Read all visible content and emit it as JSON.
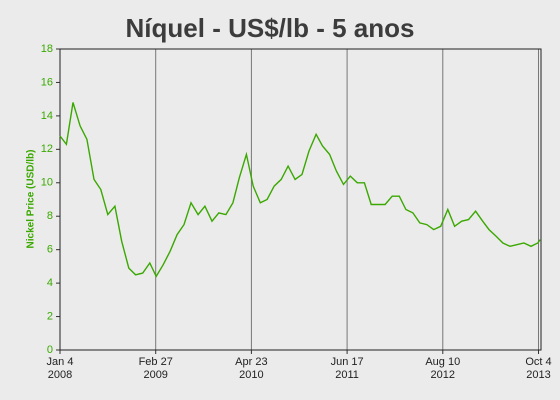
{
  "chart_data": {
    "type": "line",
    "title": "Níquel - US$/lb - 5 anos",
    "y_label": "Nickel Price (USD/lb)",
    "x": [
      "2008-01-04",
      "2008-02-01",
      "2008-03-01",
      "2008-04-01",
      "2008-05-01",
      "2008-06-01",
      "2008-07-01",
      "2008-08-01",
      "2008-09-01",
      "2008-10-01",
      "2008-11-01",
      "2008-12-01",
      "2009-01-01",
      "2009-02-01",
      "2009-03-01",
      "2009-04-01",
      "2009-05-01",
      "2009-06-01",
      "2009-07-01",
      "2009-08-01",
      "2009-09-01",
      "2009-10-01",
      "2009-11-01",
      "2009-12-01",
      "2010-01-01",
      "2010-02-01",
      "2010-03-01",
      "2010-04-01",
      "2010-05-01",
      "2010-06-01",
      "2010-07-01",
      "2010-08-01",
      "2010-09-01",
      "2010-10-01",
      "2010-11-01",
      "2010-12-01",
      "2011-01-01",
      "2011-02-01",
      "2011-03-01",
      "2011-04-01",
      "2011-05-01",
      "2011-06-01",
      "2011-07-01",
      "2011-08-01",
      "2011-09-01",
      "2011-10-01",
      "2011-11-01",
      "2011-12-01",
      "2012-01-01",
      "2012-02-01",
      "2012-03-01",
      "2012-04-01",
      "2012-05-01",
      "2012-06-01",
      "2012-07-01",
      "2012-08-01",
      "2012-09-01",
      "2012-10-01",
      "2012-11-01",
      "2012-12-01",
      "2013-01-01",
      "2013-02-01",
      "2013-03-01",
      "2013-04-01",
      "2013-05-01",
      "2013-06-01",
      "2013-07-01",
      "2013-08-01",
      "2013-09-01",
      "2013-10-01",
      "2013-10-11"
    ],
    "series": [
      {
        "name": "Nickel Price",
        "color": "#3aa800",
        "values": [
          12.8,
          12.3,
          14.8,
          13.4,
          12.6,
          10.2,
          9.6,
          8.1,
          8.6,
          6.5,
          4.9,
          4.5,
          4.6,
          5.2,
          4.4,
          5.1,
          5.9,
          6.9,
          7.5,
          8.8,
          8.1,
          8.6,
          7.7,
          8.2,
          8.1,
          8.8,
          10.3,
          11.7,
          9.8,
          8.8,
          9.0,
          9.8,
          10.2,
          11.0,
          10.2,
          10.5,
          11.9,
          12.9,
          12.2,
          11.7,
          10.7,
          9.9,
          10.4,
          10.0,
          10.0,
          8.7,
          8.7,
          8.7,
          9.2,
          9.2,
          8.4,
          8.2,
          7.6,
          7.5,
          7.2,
          7.4,
          8.4,
          7.4,
          7.7,
          7.8,
          8.3,
          7.7,
          7.2,
          6.8,
          6.4,
          6.2,
          6.3,
          6.4,
          6.2,
          6.4,
          6.6
        ]
      }
    ],
    "xlim": [
      "2008-01-04",
      "2013-10-15"
    ],
    "xticks": [
      {
        "value": "2008-01-04",
        "label": "Jan 4",
        "sublabel": "2008"
      },
      {
        "value": "2009-02-27",
        "label": "Feb 27",
        "sublabel": "2009"
      },
      {
        "value": "2010-04-23",
        "label": "Apr 23",
        "sublabel": "2010"
      },
      {
        "value": "2011-06-17",
        "label": "Jun 17",
        "sublabel": "2011"
      },
      {
        "value": "2012-08-10",
        "label": "Aug 10",
        "sublabel": "2012"
      },
      {
        "value": "2013-10-04",
        "label": "Oct 4",
        "sublabel": "2013"
      }
    ],
    "ylim": [
      0,
      18
    ],
    "yticks": [
      0,
      2,
      4,
      6,
      8,
      10,
      12,
      14,
      16,
      18
    ],
    "grid": "x"
  }
}
